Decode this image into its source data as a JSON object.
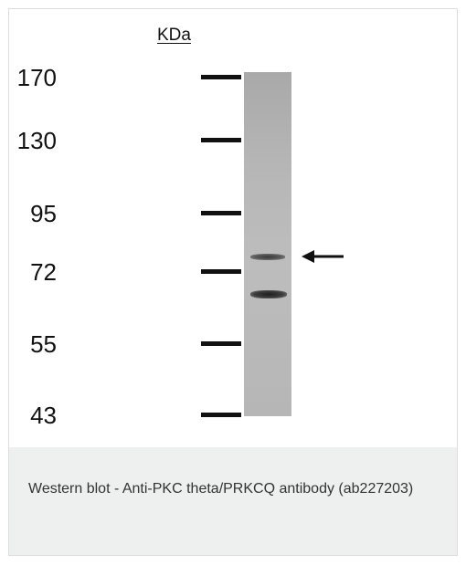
{
  "figure": {
    "unit_label": "KDa",
    "markers": [
      "170",
      "130",
      "95",
      "72",
      "55",
      "43"
    ],
    "band_color": "#2f2f2f",
    "lane_color": "#b5b5b5"
  },
  "caption": {
    "text": "Western blot - Anti-PKC theta/PRKCQ antibody (ab227203)"
  },
  "icons": {
    "arrow": "left-arrow-icon"
  }
}
